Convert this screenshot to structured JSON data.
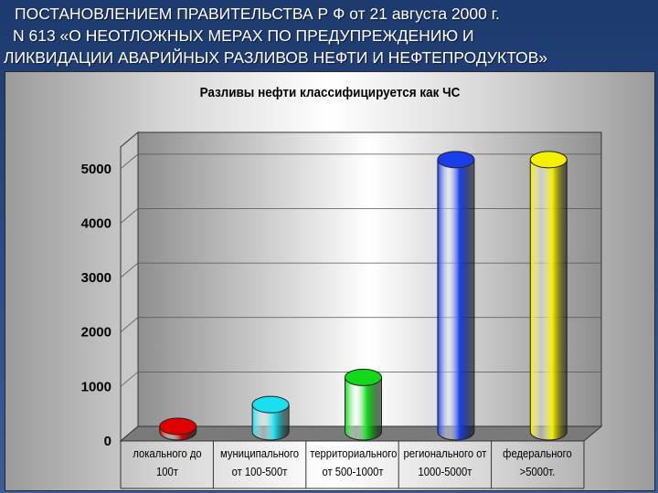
{
  "header": {
    "line1": "ПОСТАНОВЛЕНИЕМ  ПРАВИТЕЛЬСТВА  Р Ф от 21 августа 2000 г.",
    "line2": "N 613    «О НЕОТЛОЖНЫХ МЕРАХ ПО ПРЕДУПРЕЖДЕНИЮ И",
    "line3": "ЛИКВИДАЦИИ  АВАРИЙНЫХ РАЗЛИВОВ НЕФТИ И  НЕФТЕПРОДУКТОВ»"
  },
  "chart_data": {
    "type": "bar",
    "title": "Разливы нефти классифицируется как ЧС",
    "categories": [
      [
        "локального  до",
        "100т"
      ],
      [
        "муниципального",
        "от 100-500т"
      ],
      [
        "территориального",
        "от 500-1000т"
      ],
      [
        "регионального  от",
        "1000-5000т"
      ],
      [
        "федерального",
        ">5000т."
      ]
    ],
    "values": [
      100,
      500,
      1000,
      5000,
      5000
    ],
    "yticks": [
      "0",
      "1000",
      "2000",
      "3000",
      "4000",
      "5000"
    ],
    "ylim": [
      0,
      5400
    ],
    "grid": true,
    "colors": [
      "#e00000",
      "#19e0f0",
      "#12d81a",
      "#1a3fe8",
      "#f4f000"
    ]
  }
}
